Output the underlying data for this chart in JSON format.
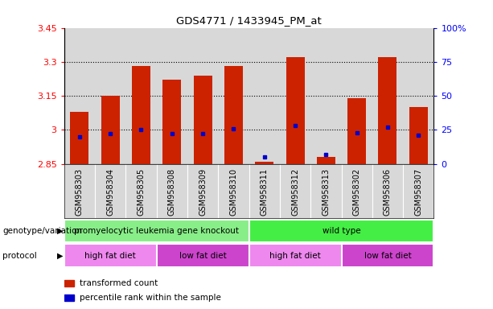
{
  "title": "GDS4771 / 1433945_PM_at",
  "samples": [
    "GSM958303",
    "GSM958304",
    "GSM958305",
    "GSM958308",
    "GSM958309",
    "GSM958310",
    "GSM958311",
    "GSM958312",
    "GSM958313",
    "GSM958302",
    "GSM958306",
    "GSM958307"
  ],
  "bar_bottom": 2.85,
  "bar_top": [
    3.08,
    3.15,
    3.28,
    3.22,
    3.24,
    3.28,
    2.86,
    3.32,
    2.88,
    3.14,
    3.32,
    3.1
  ],
  "percentile": [
    20,
    22,
    25,
    22,
    22,
    26,
    5,
    28,
    7,
    23,
    27,
    21
  ],
  "ylim_left": [
    2.85,
    3.45
  ],
  "ylim_right": [
    0,
    100
  ],
  "yticks_left": [
    2.85,
    3.0,
    3.15,
    3.3,
    3.45
  ],
  "yticks_right": [
    0,
    25,
    50,
    75,
    100
  ],
  "ytick_labels_left": [
    "2.85",
    "3",
    "3.15",
    "3.3",
    "3.45"
  ],
  "ytick_labels_right": [
    "0",
    "25",
    "50",
    "75",
    "100%"
  ],
  "bar_color": "#cc2200",
  "dot_color": "#0000cc",
  "bg_color": "#d8d8d8",
  "genotype_groups": [
    {
      "label": "promyelocytic leukemia gene knockout",
      "start": 0,
      "end": 6,
      "color": "#88ee88"
    },
    {
      "label": "wild type",
      "start": 6,
      "end": 12,
      "color": "#44ee44"
    }
  ],
  "protocol_groups": [
    {
      "label": "high fat diet",
      "start": 0,
      "end": 3,
      "color": "#ee88ee"
    },
    {
      "label": "low fat diet",
      "start": 3,
      "end": 6,
      "color": "#cc44cc"
    },
    {
      "label": "high fat diet",
      "start": 6,
      "end": 9,
      "color": "#ee88ee"
    },
    {
      "label": "low fat diet",
      "start": 9,
      "end": 12,
      "color": "#cc44cc"
    }
  ],
  "legend_items": [
    {
      "label": "transformed count",
      "color": "#cc2200"
    },
    {
      "label": "percentile rank within the sample",
      "color": "#0000cc"
    }
  ],
  "grid_yticks": [
    3.0,
    3.15,
    3.3
  ]
}
